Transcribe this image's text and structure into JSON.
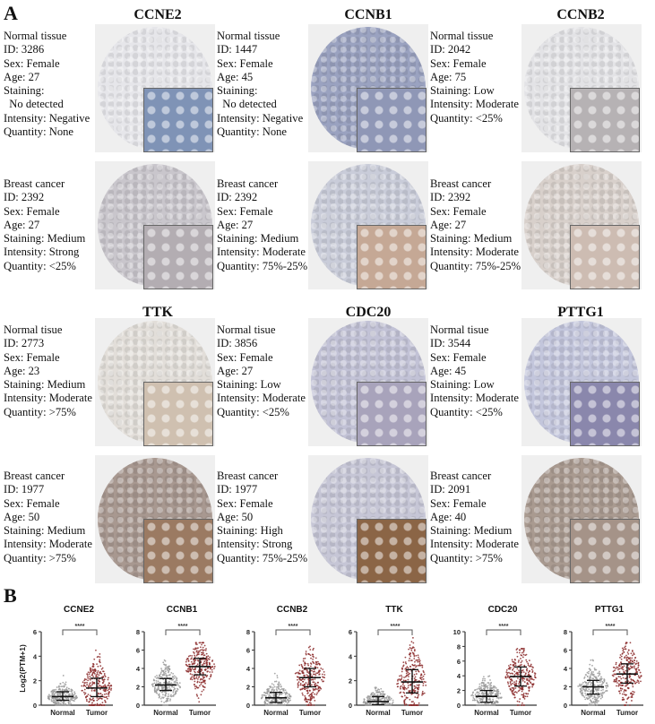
{
  "panel_a": {
    "label": "A",
    "genes": [
      "CCNE2",
      "CCNB1",
      "CCNB2",
      "TTK",
      "CDC20",
      "PTTG1"
    ],
    "samples": [
      {
        "gene": "CCNE2",
        "lines": [
          "Normal tissue",
          "ID: 3286",
          "Sex: Female",
          "Age: 27",
          "Staining:",
          "  No detected",
          "Intensity: Negative",
          "Quantity: None"
        ],
        "core_color": "#e6e6ea",
        "inset_color": "#7f93b6"
      },
      {
        "gene": "CCNB1",
        "lines": [
          "Normal tissue",
          "ID: 1447",
          "Sex: Female",
          "Age: 45",
          "Staining:",
          "  No detected",
          "Intensity: Negative",
          "Quantity: None"
        ],
        "core_color": "#9aa2c0",
        "inset_color": "#8f97b6"
      },
      {
        "gene": "CCNB2",
        "lines": [
          "Normal tissue",
          "ID: 2042",
          "Sex: Female",
          "Age: 75",
          "Staining: Low",
          "Intensity: Moderate",
          "Quantity: <25%"
        ],
        "core_color": "#e3e3e6",
        "inset_color": "#b6b2b4"
      },
      {
        "gene": "CCNE2",
        "lines": [
          "Breast cancer",
          "ID: 2392",
          "Sex: Female",
          "Age: 27",
          "Staining: Medium",
          "Intensity: Strong",
          "Quantity: <25%"
        ],
        "core_color": "#c9c6cc",
        "inset_color": "#b3adb2"
      },
      {
        "gene": "CCNB1",
        "lines": [
          "Breast cancer",
          "ID: 2392",
          "Sex: Female",
          "Age: 27",
          "Staining: Medium",
          "Intensity: Moderate",
          "Quantity: 75%-25%"
        ],
        "core_color": "#c9ccd9",
        "inset_color": "#c5a895"
      },
      {
        "gene": "CCNB2",
        "lines": [
          "Breast cancer",
          "ID: 2392",
          "Sex: Female",
          "Age: 27",
          "Staining: Medium",
          "Intensity: Moderate",
          "Quantity: 75%-25%"
        ],
        "core_color": "#d8d0cb",
        "inset_color": "#cdbcb2"
      },
      {
        "gene": "TTK",
        "lines": [
          "Normal tisue",
          "ID: 2773",
          "Sex: Female",
          "Age: 23",
          "Staining: Medium",
          "Intensity: Moderate",
          "Quantity: >75%"
        ],
        "core_color": "#e2ded9",
        "inset_color": "#cfc0b0"
      },
      {
        "gene": "CDC20",
        "lines": [
          "Normal tisue",
          "ID: 3856",
          "Sex: Female",
          "Age: 27",
          "Staining: Low",
          "Intensity: Moderate",
          "Quantity: <25%"
        ],
        "core_color": "#c2c2d6",
        "inset_color": "#a8a3bb"
      },
      {
        "gene": "PTTG1",
        "lines": [
          "Normal tisue",
          "ID: 3544",
          "Sex: Female",
          "Age: 45",
          "Staining: Low",
          "Intensity: Moderate",
          "Quantity: <25%"
        ],
        "core_color": "#c3c6dc",
        "inset_color": "#8a87ac"
      },
      {
        "gene": "TTK",
        "lines": [
          "Breast cancer",
          "ID: 1977",
          "Sex: Female",
          "Age: 50",
          "Staining: Medium",
          "Intensity: Moderate",
          "Quantity: >75%"
        ],
        "core_color": "#a89890",
        "inset_color": "#9b7a62"
      },
      {
        "gene": "CDC20",
        "lines": [
          "Breast cancer",
          "ID: 1977",
          "Sex: Female",
          "Age: 50",
          "Staining: High",
          "Intensity: Strong",
          "Quantity: 75%-25%"
        ],
        "core_color": "#c6c6d6",
        "inset_color": "#8b6546"
      },
      {
        "gene": "PTTG1",
        "lines": [
          "Breast cancer",
          "ID: 2091",
          "Sex: Female",
          "Age: 40",
          "Staining: Medium",
          "Intensity: Moderate",
          "Quantity: >75%"
        ],
        "core_color": "#a99a90",
        "inset_color": "#a59388"
      }
    ]
  },
  "panel_b": {
    "label": "B",
    "ylabel": "Log2(PTM+1)",
    "significance": "****"
  },
  "chart_data": [
    {
      "type": "scatter",
      "title": "CCNE2",
      "categories": [
        "Normal",
        "Tumor"
      ],
      "ylabel": "Log2(PTM+1)",
      "ylim": [
        0,
        6
      ],
      "yticks": [
        0,
        2,
        4,
        6
      ],
      "series": [
        {
          "name": "Normal",
          "median": 0.7,
          "q1": 0.4,
          "q3": 1.1,
          "max": 2.5,
          "color": "#9a9a9a"
        },
        {
          "name": "Tumor",
          "median": 1.4,
          "q1": 0.7,
          "q3": 2.2,
          "max": 5.1,
          "color": "#8b2a2a"
        }
      ],
      "significance": "****"
    },
    {
      "type": "scatter",
      "title": "CCNB1",
      "categories": [
        "Normal",
        "Tumor"
      ],
      "ylabel": "",
      "ylim": [
        0,
        8
      ],
      "yticks": [
        0,
        2,
        4,
        6,
        8
      ],
      "series": [
        {
          "name": "Normal",
          "median": 2.2,
          "q1": 1.6,
          "q3": 2.9,
          "max": 4.9,
          "color": "#9a9a9a"
        },
        {
          "name": "Tumor",
          "median": 4.2,
          "q1": 3.3,
          "q3": 5.1,
          "max": 6.8,
          "color": "#8b2a2a"
        }
      ],
      "significance": "****"
    },
    {
      "type": "scatter",
      "title": "CCNB2",
      "categories": [
        "Normal",
        "Tumor"
      ],
      "ylabel": "",
      "ylim": [
        0,
        8
      ],
      "yticks": [
        0,
        2,
        4,
        6,
        8
      ],
      "series": [
        {
          "name": "Normal",
          "median": 0.8,
          "q1": 0.3,
          "q3": 1.4,
          "max": 4.4,
          "color": "#9a9a9a"
        },
        {
          "name": "Tumor",
          "median": 3.0,
          "q1": 2.0,
          "q3": 4.0,
          "max": 6.4,
          "color": "#8b2a2a"
        }
      ],
      "significance": "****"
    },
    {
      "type": "scatter",
      "title": "TTK",
      "categories": [
        "Normal",
        "Tumor"
      ],
      "ylabel": "",
      "ylim": [
        0,
        6
      ],
      "yticks": [
        0,
        2,
        4,
        6
      ],
      "series": [
        {
          "name": "Normal",
          "median": 0.3,
          "q1": 0.05,
          "q3": 0.7,
          "max": 2.3,
          "color": "#9a9a9a"
        },
        {
          "name": "Tumor",
          "median": 1.9,
          "q1": 1.0,
          "q3": 2.9,
          "max": 5.5,
          "color": "#8b2a2a"
        }
      ],
      "significance": "****"
    },
    {
      "type": "scatter",
      "title": "CDC20",
      "categories": [
        "Normal",
        "Tumor"
      ],
      "ylabel": "",
      "ylim": [
        0,
        10
      ],
      "yticks": [
        0,
        2,
        4,
        6,
        8,
        10
      ],
      "series": [
        {
          "name": "Normal",
          "median": 1.2,
          "q1": 0.4,
          "q3": 2.0,
          "max": 5.1,
          "color": "#9a9a9a"
        },
        {
          "name": "Tumor",
          "median": 3.9,
          "q1": 2.6,
          "q3": 5.2,
          "max": 7.7,
          "color": "#8b2a2a"
        }
      ],
      "significance": "****"
    },
    {
      "type": "scatter",
      "title": "PTTG1",
      "categories": [
        "Normal",
        "Tumor"
      ],
      "ylabel": "",
      "ylim": [
        0,
        8
      ],
      "yticks": [
        0,
        2,
        4,
        6,
        8
      ],
      "series": [
        {
          "name": "Normal",
          "median": 2.0,
          "q1": 1.2,
          "q3": 2.7,
          "max": 5.4,
          "color": "#9a9a9a"
        },
        {
          "name": "Tumor",
          "median": 3.4,
          "q1": 2.4,
          "q3": 4.5,
          "max": 6.8,
          "color": "#8b2a2a"
        }
      ],
      "significance": "****"
    }
  ]
}
